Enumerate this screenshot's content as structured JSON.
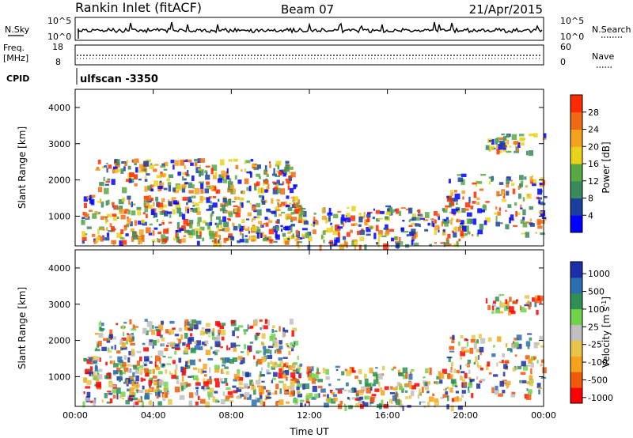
{
  "header": {
    "title": "Rankin Inlet (fitACF)",
    "beam": "Beam 07",
    "date": "21/Apr/2015"
  },
  "nsky_panel": {
    "left_label": "N.Sky",
    "right_label": "N.Search",
    "left_ticks": [
      "10^5",
      "10^0"
    ],
    "right_ticks": [
      "10^5",
      "10^0"
    ]
  },
  "freq_panel": {
    "left_label_1": "Freq.",
    "left_label_2": "[MHz]",
    "right_label": "Nave",
    "left_ticks": [
      "18",
      "8"
    ],
    "right_ticks": [
      "60",
      "0"
    ]
  },
  "cpid": {
    "label": "CPID",
    "value": "ulfscan -3350"
  },
  "colors": {
    "power_scale": [
      "#0000ff",
      "#1a3fa0",
      "#3a8a5c",
      "#5aa845",
      "#e8d21c",
      "#f4a11e",
      "#f06a14",
      "#ff2a00"
    ],
    "velocity_scale": [
      "#ff0000",
      "#f05a0a",
      "#f6a21a",
      "#e8c54a",
      "#bfbfbf",
      "#6fd34a",
      "#2f8f55",
      "#2b6fb0",
      "#1a2fa8"
    ]
  },
  "chart_data": [
    {
      "type": "heatmap",
      "name": "power",
      "xlabel": "",
      "ylabel": "Slant Range [km]",
      "x_ticks": [
        "00:00",
        "04:00",
        "08:00",
        "12:00",
        "16:00",
        "20:00",
        "00:00"
      ],
      "y_ticks": [
        "1000",
        "2000",
        "3000",
        "4000"
      ],
      "xlim": [
        0,
        24
      ],
      "ylim": [
        180,
        4500
      ],
      "colorbar": {
        "label": "Power [dB]",
        "ticks": [
          "4",
          "8",
          "12",
          "16",
          "20",
          "24",
          "28"
        ]
      }
    },
    {
      "type": "heatmap",
      "name": "velocity",
      "xlabel": "Time UT",
      "ylabel": "Slant Range [km]",
      "x_ticks": [
        "00:00",
        "04:00",
        "08:00",
        "12:00",
        "16:00",
        "20:00",
        "00:00"
      ],
      "y_ticks": [
        "1000",
        "2000",
        "3000",
        "4000"
      ],
      "xlim": [
        0,
        24
      ],
      "ylim": [
        180,
        4500
      ],
      "colorbar": {
        "label": "Velocity [m s^-1]",
        "ticks": [
          "1000",
          "500",
          "100",
          "25",
          "-25",
          "-100",
          "-500",
          "-1000"
        ]
      }
    }
  ]
}
